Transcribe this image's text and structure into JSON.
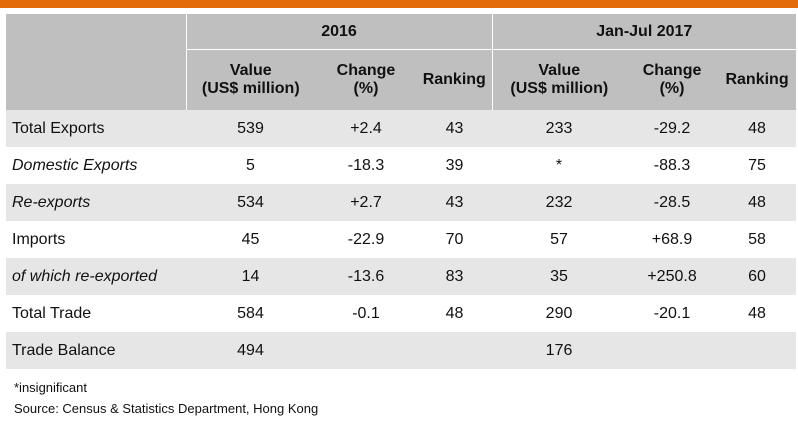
{
  "header": {
    "groups": [
      "2016",
      "Jan-Jul 2017"
    ],
    "columns": [
      [
        "Value",
        "(US$ million)"
      ],
      [
        "Change",
        "(%)"
      ],
      [
        "Ranking"
      ],
      [
        "Value",
        "(US$ million)"
      ],
      [
        "Change",
        "(%)"
      ],
      [
        "Ranking"
      ]
    ]
  },
  "rows": [
    {
      "label": "Total Exports",
      "italic": false,
      "values": [
        "539",
        "+2.4",
        "43",
        "233",
        "-29.2",
        "48"
      ]
    },
    {
      "label": "Domestic Exports",
      "italic": true,
      "values": [
        "5",
        "-18.3",
        "39",
        "*",
        "-88.3",
        "75"
      ]
    },
    {
      "label": "Re-exports",
      "italic": true,
      "values": [
        "534",
        "+2.7",
        "43",
        "232",
        "-28.5",
        "48"
      ]
    },
    {
      "label": "Imports",
      "italic": false,
      "values": [
        "45",
        "-22.9",
        "70",
        "57",
        "+68.9",
        "58"
      ]
    },
    {
      "label": "of which re-exported",
      "italic": true,
      "values": [
        "14",
        "-13.6",
        "83",
        "35",
        "+250.8",
        "60"
      ]
    },
    {
      "label": "Total Trade",
      "italic": false,
      "values": [
        "584",
        "-0.1",
        "48",
        "290",
        "-20.1",
        "48"
      ]
    },
    {
      "label": "Trade Balance",
      "italic": false,
      "values": [
        "494",
        "",
        "",
        "176",
        "",
        ""
      ]
    }
  ],
  "footnotes": {
    "note": "*insignificant",
    "source": "Source: Census & Statistics Department, Hong Kong"
  },
  "colors": {
    "accent_bar": "#e36c0a",
    "header_bg": "#bfbfbf",
    "stripe_bg": "#e6e6e6"
  }
}
